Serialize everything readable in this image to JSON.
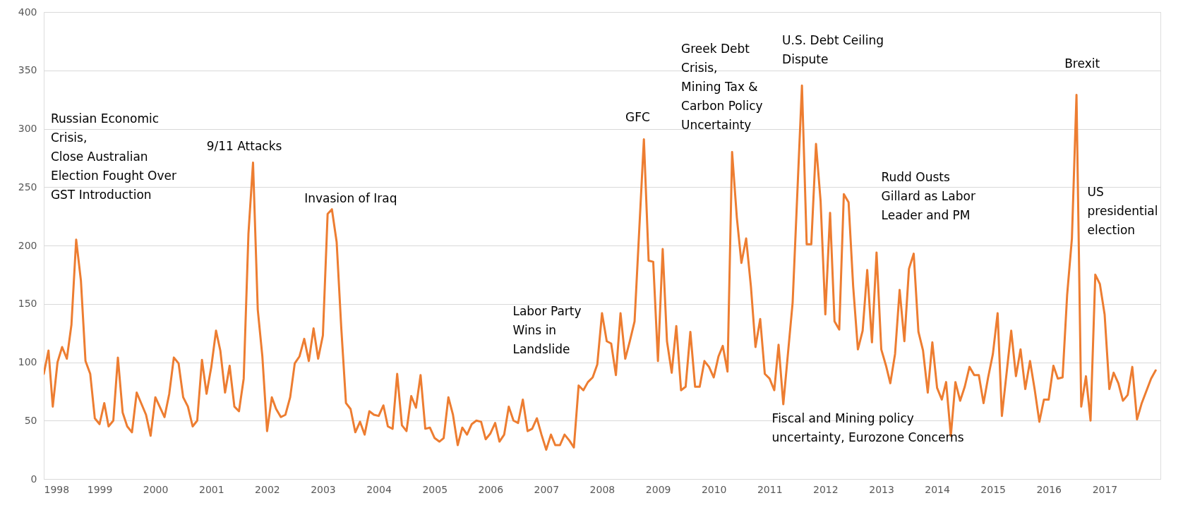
{
  "chart_data": {
    "type": "line",
    "x": [
      "1998-01",
      "1998-02",
      "1998-03",
      "1998-04",
      "1998-05",
      "1998-06",
      "1998-07",
      "1998-08",
      "1998-09",
      "1998-10",
      "1998-11",
      "1998-12",
      "1999-01",
      "1999-02",
      "1999-03",
      "1999-04",
      "1999-05",
      "1999-06",
      "1999-07",
      "1999-08",
      "1999-09",
      "1999-11",
      "1999-12",
      "2000-01",
      "2000-03",
      "2000-04",
      "2000-05",
      "2000-06",
      "2000-07",
      "2000-08",
      "2000-09",
      "2000-10",
      "2000-11",
      "2000-12",
      "2001-01",
      "2001-02",
      "2001-03",
      "2001-04",
      "2001-05",
      "2001-06",
      "2001-07",
      "2001-08",
      "2001-09",
      "2001-10",
      "2001-11",
      "2001-12",
      "2002-01",
      "2002-02",
      "2002-03",
      "2002-04",
      "2002-05",
      "2002-06",
      "2002-07",
      "2002-08",
      "2002-09",
      "2002-10",
      "2002-11",
      "2002-12",
      "2003-01",
      "2003-02",
      "2003-03",
      "2003-04",
      "2003-05",
      "2003-06",
      "2003-07",
      "2003-08",
      "2003-09",
      "2003-10",
      "2003-11",
      "2003-12",
      "2004-01",
      "2004-02",
      "2004-03",
      "2004-04",
      "2004-05",
      "2004-06",
      "2004-07",
      "2004-08",
      "2004-09",
      "2004-10",
      "2004-11",
      "2004-12",
      "2005-01",
      "2005-02",
      "2005-03",
      "2005-04",
      "2005-05",
      "2005-06",
      "2005-07",
      "2005-08",
      "2005-09",
      "2005-10",
      "2005-11",
      "2005-12",
      "2006-01",
      "2006-02",
      "2006-03",
      "2006-04",
      "2006-05",
      "2006-06",
      "2006-07",
      "2006-08",
      "2006-09",
      "2006-10",
      "2006-11",
      "2006-12",
      "2007-01",
      "2007-02",
      "2007-03",
      "2007-04",
      "2007-05",
      "2007-06",
      "2007-07",
      "2007-08",
      "2007-09",
      "2007-10",
      "2007-11",
      "2007-12",
      "2008-01",
      "2008-02",
      "2008-03",
      "2008-04",
      "2008-05",
      "2008-06",
      "2008-07",
      "2008-08",
      "2008-10",
      "2008-11",
      "2008-12",
      "2009-01",
      "2009-02",
      "2009-03",
      "2009-04",
      "2009-05",
      "2009-06",
      "2009-07",
      "2009-08",
      "2009-09",
      "2009-10",
      "2009-11",
      "2009-12",
      "2010-01",
      "2010-02",
      "2010-03",
      "2010-04",
      "2010-05",
      "2010-06",
      "2010-07",
      "2010-08",
      "2010-09",
      "2010-10",
      "2010-11",
      "2010-12",
      "2011-01",
      "2011-02",
      "2011-03",
      "2011-04",
      "2011-06",
      "2011-08",
      "2011-09",
      "2011-10",
      "2011-11",
      "2011-12",
      "2012-01",
      "2012-02",
      "2012-03",
      "2012-04",
      "2012-05",
      "2012-06",
      "2012-07",
      "2012-08",
      "2012-09",
      "2012-10",
      "2012-11",
      "2012-12",
      "2013-01",
      "2013-02",
      "2013-03",
      "2013-04",
      "2013-05",
      "2013-06",
      "2013-07",
      "2013-08",
      "2013-09",
      "2013-10",
      "2013-11",
      "2013-12",
      "2014-01",
      "2014-02",
      "2014-03",
      "2014-04",
      "2014-05",
      "2014-06",
      "2014-07",
      "2014-08",
      "2014-09",
      "2014-10",
      "2014-11",
      "2014-12",
      "2015-01",
      "2015-02",
      "2015-03",
      "2015-04",
      "2015-05",
      "2015-06",
      "2015-07",
      "2015-08",
      "2015-09",
      "2015-10",
      "2015-11",
      "2015-12",
      "2016-01",
      "2016-02",
      "2016-03",
      "2016-04",
      "2016-05",
      "2016-06",
      "2016-07",
      "2016-08",
      "2016-09",
      "2016-10",
      "2016-11",
      "2016-12",
      "2017-01",
      "2017-02",
      "2017-03",
      "2017-04",
      "2017-05",
      "2017-06",
      "2017-07",
      "2017-08",
      "2017-09",
      "2017-11",
      "2017-12"
    ],
    "values": [
      90,
      110,
      62,
      100,
      113,
      103,
      132,
      205,
      170,
      101,
      90,
      52,
      47,
      65,
      45,
      50,
      104,
      57,
      45,
      40,
      74,
      55,
      37,
      70,
      53,
      73,
      104,
      99,
      70,
      62,
      45,
      50,
      102,
      73,
      96,
      127,
      110,
      74,
      97,
      62,
      58,
      86,
      210,
      271,
      145,
      105,
      41,
      70,
      60,
      53,
      55,
      70,
      99,
      105,
      120,
      101,
      129,
      103,
      123,
      227,
      231,
      203,
      130,
      65,
      60,
      40,
      49,
      38,
      58,
      55,
      54,
      63,
      45,
      43,
      90,
      46,
      41,
      71,
      61,
      89,
      43,
      44,
      35,
      32,
      35,
      70,
      55,
      29,
      44,
      38,
      47,
      50,
      49,
      34,
      39,
      48,
      32,
      38,
      62,
      50,
      48,
      68,
      41,
      43,
      52,
      38,
      25,
      38,
      29,
      29,
      38,
      33,
      27,
      80,
      76,
      83,
      87,
      98,
      142,
      118,
      116,
      89,
      142,
      103,
      118,
      135,
      291,
      187,
      186,
      101,
      197,
      118,
      91,
      131,
      76,
      79,
      126,
      79,
      79,
      101,
      96,
      87,
      105,
      114,
      92,
      280,
      224,
      185,
      206,
      165,
      113,
      137,
      90,
      86,
      76,
      115,
      64,
      151,
      337,
      201,
      201,
      287,
      238,
      141,
      228,
      135,
      128,
      244,
      237,
      165,
      111,
      127,
      179,
      117,
      194,
      111,
      97,
      82,
      107,
      162,
      118,
      180,
      193,
      126,
      110,
      74,
      117,
      78,
      68,
      83,
      37,
      83,
      67,
      79,
      96,
      89,
      89,
      65,
      87,
      107,
      142,
      54,
      91,
      127,
      88,
      111,
      77,
      101,
      77,
      49,
      68,
      68,
      97,
      86,
      87,
      158,
      206,
      329,
      62,
      88,
      50,
      175,
      167,
      141,
      77,
      91,
      82,
      67,
      72,
      96,
      51,
      65,
      86,
      93
    ],
    "color": "#ed7d31",
    "line_style": "solid",
    "marker": "none",
    "xlim": [
      "1998-01",
      "2018-01"
    ],
    "xticks": [
      {
        "value": "1998-01",
        "label": "1998"
      },
      {
        "value": "1999-01",
        "label": "1999"
      },
      {
        "value": "2000-01",
        "label": "2000"
      },
      {
        "value": "2001-01",
        "label": "2001"
      },
      {
        "value": "2002-01",
        "label": "2002"
      },
      {
        "value": "2003-01",
        "label": "2003"
      },
      {
        "value": "2004-01",
        "label": "2004"
      },
      {
        "value": "2005-01",
        "label": "2005"
      },
      {
        "value": "2006-01",
        "label": "2006"
      },
      {
        "value": "2007-01",
        "label": "2007"
      },
      {
        "value": "2008-01",
        "label": "2008"
      },
      {
        "value": "2009-01",
        "label": "2009"
      },
      {
        "value": "2010-01",
        "label": "2010"
      },
      {
        "value": "2011-01",
        "label": "2011"
      },
      {
        "value": "2012-01",
        "label": "2012"
      },
      {
        "value": "2013-01",
        "label": "2013"
      },
      {
        "value": "2014-01",
        "label": "2014"
      },
      {
        "value": "2015-01",
        "label": "2015"
      },
      {
        "value": "2016-01",
        "label": "2016"
      },
      {
        "value": "2017-01",
        "label": "2017"
      }
    ],
    "ylim": [
      0,
      400
    ],
    "yticks": [
      0,
      50,
      100,
      150,
      200,
      250,
      300,
      350,
      400
    ],
    "grid": "y",
    "annotations": [
      "Russian Economic\nCrisis,\n\nClose Australian\nElection Fought Over\nGST Introduction",
      "9/11 Attacks",
      "Invasion of Iraq",
      "Labor Party\nWins in\nLandslide",
      "GFC",
      "Greek Debt\nCrisis,\nMining Tax &\nCarbon Policy\nUncertainty",
      "U.S. Debt Ceiling\nDispute",
      "Fiscal and Mining policy\nuncertainty, Eurozone Concerns",
      "Rudd Ousts\nGillard as Labor\nLeader and PM",
      "Brexit",
      "US\npresidential\nelection"
    ]
  }
}
